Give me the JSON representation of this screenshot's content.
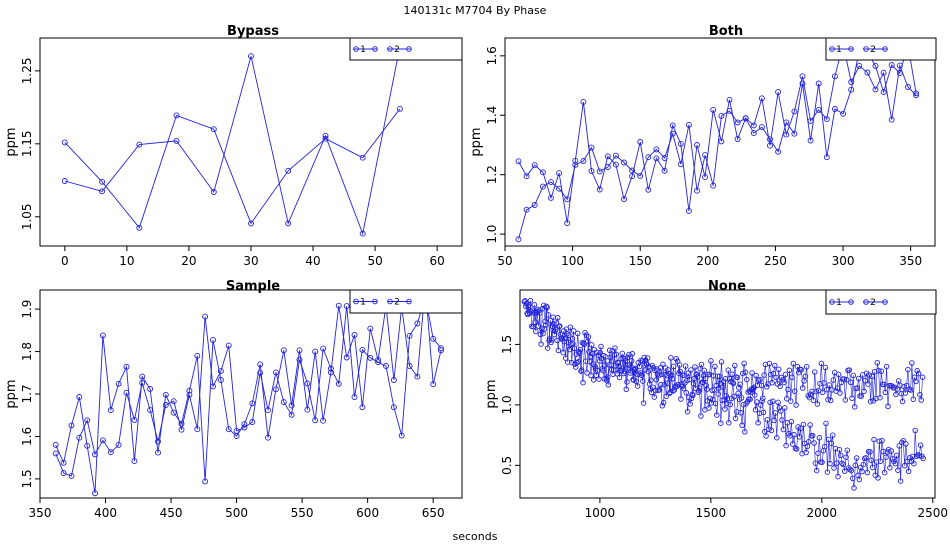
{
  "figure": {
    "suptitle": "140131c    M7704   By Phase",
    "xlabel": "seconds",
    "series_color": "#2222dd"
  },
  "chart_data": [
    {
      "type": "line",
      "title": "Bypass",
      "ylabel": "ppm",
      "xlim": [
        -4,
        64
      ],
      "ylim": [
        1.01,
        1.295
      ],
      "xticks": [
        0,
        10,
        20,
        30,
        40,
        50,
        60
      ],
      "yticks": [
        1.05,
        1.15,
        1.25
      ],
      "ytick_labels": [
        "1.05",
        "1.15",
        "1.25"
      ],
      "legend": [
        "1",
        "2"
      ],
      "series": [
        {
          "name": "1",
          "x": [
            0,
            6,
            12,
            18,
            24,
            30,
            36,
            42,
            48,
            54
          ],
          "y": [
            1.152,
            1.098,
            1.035,
            1.189,
            1.17,
            1.041,
            1.113,
            1.157,
            1.131,
            1.198
          ]
        },
        {
          "name": "2",
          "x": [
            0,
            6,
            12,
            18,
            24,
            30,
            36,
            42,
            48,
            54
          ],
          "y": [
            1.099,
            1.085,
            1.149,
            1.154,
            1.084,
            1.27,
            1.041,
            1.161,
            1.027,
            1.283
          ]
        }
      ]
    },
    {
      "type": "line",
      "title": "Both",
      "ylabel": "ppm",
      "xlim": [
        50,
        368
      ],
      "ylim": [
        0.96,
        1.66
      ],
      "xticks": [
        50,
        100,
        150,
        200,
        250,
        300,
        350
      ],
      "yticks": [
        1.0,
        1.2,
        1.4,
        1.6
      ],
      "ytick_labels": [
        "1.0",
        "1.2",
        "1.4",
        "1.6"
      ],
      "legend": [
        "1",
        "2"
      ],
      "series": [
        {
          "name": "1",
          "x": [
            60,
            66,
            72,
            78,
            84,
            90,
            96,
            102,
            108,
            114,
            120,
            126,
            132,
            138,
            144,
            150,
            156,
            162,
            168,
            174,
            180,
            186,
            192,
            198,
            204,
            210,
            216,
            222,
            228,
            234,
            240,
            246,
            252,
            258,
            264,
            270,
            276,
            282,
            288,
            294,
            300,
            306,
            312,
            318,
            324,
            330,
            336,
            342,
            348,
            354
          ],
          "y": [
            1.245,
            1.195,
            1.232,
            1.208,
            1.122,
            1.205,
            1.037,
            1.247,
            1.445,
            1.212,
            1.15,
            1.262,
            1.234,
            1.118,
            1.195,
            1.31,
            1.149,
            1.255,
            1.213,
            1.366,
            1.304,
            1.078,
            1.3,
            1.192,
            1.418,
            1.312,
            1.452,
            1.32,
            1.39,
            1.366,
            1.457,
            1.298,
            1.478,
            1.335,
            1.413,
            1.531,
            1.381,
            1.418,
            1.387,
            1.531,
            1.64,
            1.512,
            1.566,
            1.544,
            1.487,
            1.543,
            1.385,
            1.567,
            1.495,
            1.467
          ]
        },
        {
          "name": "2",
          "x": [
            60,
            66,
            72,
            78,
            84,
            90,
            96,
            102,
            108,
            114,
            120,
            126,
            132,
            138,
            144,
            150,
            156,
            162,
            168,
            174,
            180,
            186,
            192,
            198,
            204,
            210,
            216,
            222,
            228,
            234,
            240,
            246,
            252,
            258,
            264,
            270,
            276,
            282,
            288,
            294,
            300,
            306,
            312,
            318,
            324,
            330,
            336,
            342,
            348,
            354
          ],
          "y": [
            0.983,
            1.082,
            1.098,
            1.16,
            1.175,
            1.153,
            1.117,
            1.233,
            1.246,
            1.291,
            1.211,
            1.226,
            1.264,
            1.241,
            1.214,
            1.196,
            1.259,
            1.285,
            1.256,
            1.338,
            1.235,
            1.368,
            1.146,
            1.266,
            1.163,
            1.398,
            1.415,
            1.376,
            1.389,
            1.34,
            1.36,
            1.319,
            1.277,
            1.376,
            1.338,
            1.507,
            1.315,
            1.507,
            1.259,
            1.421,
            1.405,
            1.486,
            1.617,
            1.612,
            1.566,
            1.478,
            1.569,
            1.542,
            1.636,
            1.474
          ]
        }
      ]
    },
    {
      "type": "line",
      "title": "Sample",
      "ylabel": "ppm",
      "xlim": [
        350,
        672
      ],
      "ylim": [
        1.455,
        1.945
      ],
      "xticks": [
        350,
        400,
        450,
        500,
        550,
        600,
        650
      ],
      "yticks": [
        1.5,
        1.6,
        1.7,
        1.8,
        1.9
      ],
      "ytick_labels": [
        "1.5",
        "1.6",
        "1.7",
        "1.8",
        "1.9"
      ],
      "legend": [
        "1",
        "2"
      ],
      "series": [
        {
          "name": "1",
          "x": [
            362,
            368,
            374,
            380,
            386,
            392,
            398,
            404,
            410,
            416,
            422,
            428,
            434,
            440,
            446,
            452,
            458,
            464,
            470,
            476,
            482,
            488,
            494,
            500,
            506,
            512,
            518,
            524,
            530,
            536,
            542,
            548,
            554,
            560,
            566,
            572,
            578,
            584,
            590,
            596,
            602,
            608,
            614,
            620,
            626,
            632,
            638,
            644,
            650,
            656
          ],
          "y": [
            1.58,
            1.538,
            1.626,
            1.693,
            1.578,
            1.466,
            1.838,
            1.662,
            1.724,
            1.764,
            1.542,
            1.741,
            1.712,
            1.562,
            1.698,
            1.656,
            1.63,
            1.708,
            1.79,
            1.494,
            1.827,
            1.733,
            1.617,
            1.601,
            1.629,
            1.678,
            1.77,
            1.597,
            1.711,
            1.803,
            1.673,
            1.803,
            1.663,
            1.8,
            1.637,
            1.751,
            1.908,
            1.786,
            1.839,
            1.669,
            1.854,
            1.78,
            1.908,
            1.733,
            1.905,
            1.766,
            1.741,
            1.955,
            1.723,
            1.803
          ]
        },
        {
          "name": "2",
          "x": [
            362,
            368,
            374,
            380,
            386,
            392,
            398,
            404,
            410,
            416,
            422,
            428,
            434,
            440,
            446,
            452,
            458,
            464,
            470,
            476,
            482,
            488,
            494,
            500,
            506,
            512,
            518,
            524,
            530,
            536,
            542,
            548,
            554,
            560,
            566,
            572,
            578,
            584,
            590,
            596,
            602,
            608,
            614,
            620,
            626,
            632,
            638,
            644,
            650,
            656
          ],
          "y": [
            1.56,
            1.514,
            1.507,
            1.597,
            1.638,
            1.558,
            1.591,
            1.563,
            1.58,
            1.703,
            1.639,
            1.726,
            1.662,
            1.588,
            1.674,
            1.683,
            1.616,
            1.698,
            1.617,
            1.882,
            1.718,
            1.754,
            1.814,
            1.613,
            1.621,
            1.634,
            1.75,
            1.662,
            1.751,
            1.681,
            1.651,
            1.781,
            1.725,
            1.638,
            1.807,
            1.76,
            1.724,
            1.907,
            1.693,
            1.804,
            1.785,
            1.775,
            1.766,
            1.669,
            1.602,
            1.837,
            1.866,
            1.93,
            1.83,
            1.808
          ]
        }
      ]
    },
    {
      "type": "scatter",
      "title": "None",
      "ylabel": "ppm",
      "xlim": [
        640,
        2510
      ],
      "ylim": [
        0.23,
        1.95
      ],
      "xticks": [
        1000,
        1500,
        2000,
        2500
      ],
      "yticks": [
        0.5,
        1.0,
        1.5
      ],
      "ytick_labels": [
        "0.5",
        "1.0",
        "1.5"
      ],
      "legend": [
        "1",
        "2"
      ],
      "series": [
        {
          "name": "1",
          "x_start": 660,
          "x_step": 6,
          "n": 300,
          "y_knots": [
            [
              660,
              1.85
            ],
            [
              800,
              1.62
            ],
            [
              960,
              1.34
            ],
            [
              1200,
              1.26
            ],
            [
              1500,
              1.22
            ],
            [
              2000,
              1.17
            ],
            [
              2450,
              1.17
            ]
          ],
          "spread": 0.08,
          "seed": 17
        },
        {
          "name": "2",
          "x_start": 663,
          "x_step": 6,
          "n": 300,
          "y_knots": [
            [
              663,
              1.8
            ],
            [
              800,
              1.58
            ],
            [
              960,
              1.38
            ],
            [
              1200,
              1.25
            ],
            [
              1500,
              1.05
            ],
            [
              1700,
              0.97
            ],
            [
              1800,
              0.88
            ],
            [
              2000,
              0.65
            ],
            [
              2150,
              0.48
            ],
            [
              2300,
              0.55
            ],
            [
              2450,
              0.62
            ]
          ],
          "spread": 0.09,
          "seed": 29
        }
      ]
    }
  ]
}
